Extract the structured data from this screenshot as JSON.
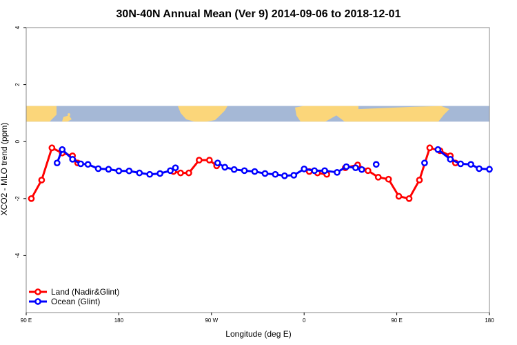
{
  "chart_data": {
    "type": "line",
    "title": "30N-40N Annual Mean (Ver 9)   2014-09-06 to 2018-12-01",
    "xlabel": "Longitude (deg E)",
    "ylabel": "XCO2 - MLO trend (ppm)",
    "xlim": [
      90,
      540
    ],
    "ylim": [
      -6,
      4
    ],
    "xticks": [
      {
        "value": 90,
        "label": "90 E"
      },
      {
        "value": 180,
        "label": "180"
      },
      {
        "value": 270,
        "label": "90 W"
      },
      {
        "value": 360,
        "label": "0"
      },
      {
        "value": 450,
        "label": "90 E"
      },
      {
        "value": 540,
        "label": "180"
      }
    ],
    "yticks": [
      {
        "value": -4,
        "label": "-4"
      },
      {
        "value": -2,
        "label": "-2"
      },
      {
        "value": 0,
        "label": "0"
      },
      {
        "value": 2,
        "label": "2"
      },
      {
        "value": 4,
        "label": "4"
      }
    ],
    "legend_position": "bottom-left",
    "map_strip": {
      "y_range": [
        0.7,
        1.25
      ],
      "ocean_color": "#a5b8d6",
      "land_color": "#fbd67a"
    },
    "series": [
      {
        "name": "Land (Nadir&Glint)",
        "color": "#ff0000",
        "points": [
          [
            95,
            -2.0
          ],
          [
            105,
            -1.35
          ],
          [
            115,
            -0.22
          ],
          [
            125,
            -0.4
          ],
          [
            135,
            -0.5
          ],
          [
            140,
            -0.75
          ],
          [
            233,
            -1.05
          ],
          [
            240,
            -1.1
          ],
          [
            248,
            -1.1
          ],
          [
            258,
            -0.65
          ],
          [
            268,
            -0.65
          ],
          [
            275,
            -0.85
          ],
          [
            365,
            -1.05
          ],
          [
            373,
            -1.1
          ],
          [
            382,
            -1.15
          ],
          [
            400,
            -0.92
          ],
          [
            412,
            -0.82
          ],
          [
            422,
            -1.02
          ],
          [
            432,
            -1.25
          ],
          [
            442,
            -1.32
          ],
          [
            452,
            -1.92
          ],
          [
            462,
            -2.0
          ],
          [
            472,
            -1.35
          ],
          [
            482,
            -0.22
          ],
          [
            492,
            -0.32
          ],
          [
            502,
            -0.5
          ],
          [
            507,
            -0.75
          ]
        ]
      },
      {
        "name": "Ocean (Glint)",
        "color": "#0000ff",
        "points": [
          [
            120,
            -0.75
          ],
          [
            125,
            -0.28
          ],
          [
            135,
            -0.62
          ],
          [
            143,
            -0.78
          ],
          [
            150,
            -0.8
          ],
          [
            160,
            -0.95
          ],
          [
            170,
            -0.97
          ],
          [
            180,
            -1.03
          ],
          [
            190,
            -1.03
          ],
          [
            200,
            -1.1
          ],
          [
            210,
            -1.15
          ],
          [
            220,
            -1.12
          ],
          [
            230,
            -1.02
          ],
          [
            235,
            -0.92
          ],
          [
            276,
            -0.75
          ],
          [
            283,
            -0.9
          ],
          [
            292,
            -0.98
          ],
          [
            302,
            -1.02
          ],
          [
            312,
            -1.05
          ],
          [
            322,
            -1.12
          ],
          [
            332,
            -1.15
          ],
          [
            341,
            -1.2
          ],
          [
            350,
            -1.18
          ],
          [
            360,
            -0.96
          ],
          [
            370,
            -1.02
          ],
          [
            380,
            -1.02
          ],
          [
            392,
            -1.08
          ],
          [
            401,
            -0.88
          ],
          [
            410,
            -0.92
          ],
          [
            416,
            -0.98
          ],
          [
            430,
            -0.8
          ],
          [
            477,
            -0.75
          ],
          [
            490,
            -0.28
          ],
          [
            502,
            -0.62
          ],
          [
            512,
            -0.78
          ],
          [
            522,
            -0.8
          ],
          [
            530,
            -0.95
          ],
          [
            540,
            -0.97
          ]
        ]
      }
    ]
  }
}
